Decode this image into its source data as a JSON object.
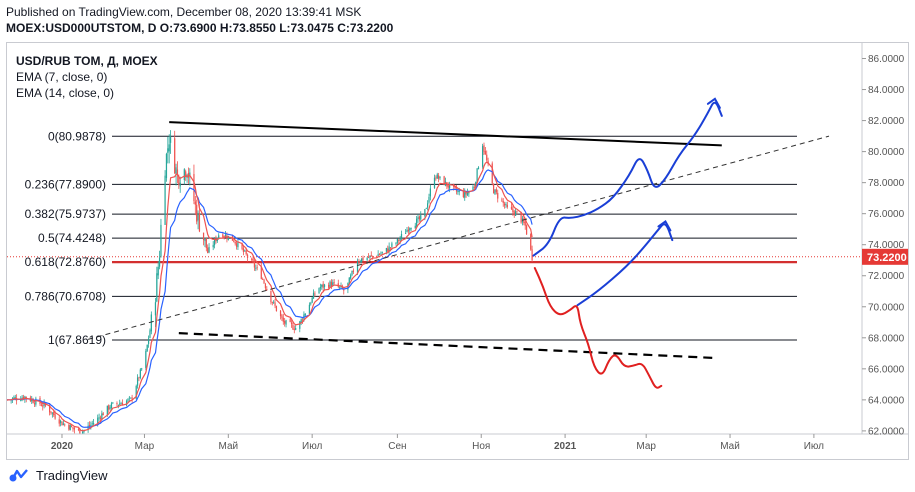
{
  "header": {
    "published": "Published on TradingView.com, December 08, 2020 13:39:41 MSK",
    "ohlc": "MOEX:USD000UTSTOM, D O:73.6900 H:73.8550 L:73.0475 C:73.2200"
  },
  "legend": {
    "symbol": "USD/RUB TOM, Д, MOEX",
    "ema7": "EMA (7, close, 0)",
    "ema14": "EMA (14, close, 0)"
  },
  "footer": {
    "brand": "TradingView",
    "logo_icon": "tradingview-logo-icon"
  },
  "colors": {
    "up": "#26a69a",
    "down": "#ef5350",
    "ema7": "#ef5350",
    "ema14": "#2962ff",
    "fib": "#131722",
    "fib_highlight": "#d32f2f",
    "price_label": "#e53935",
    "marker_blue": "#1a3fd6",
    "marker_red": "#e02020"
  },
  "chart_data": {
    "type": "candlestick",
    "title": "",
    "xlabel": "",
    "ylabel": "",
    "ylim": [
      61.8,
      87.0
    ],
    "x_range": [
      "2019-11-22",
      "2021-08-05"
    ],
    "x_ticks": [
      {
        "date": "2020-01-01",
        "label": "2020"
      },
      {
        "date": "2020-03-01",
        "label": "Мар"
      },
      {
        "date": "2020-05-01",
        "label": "Май"
      },
      {
        "date": "2020-07-01",
        "label": "Июл"
      },
      {
        "date": "2020-09-01",
        "label": "Сен"
      },
      {
        "date": "2020-11-01",
        "label": "Ноя"
      },
      {
        "date": "2021-01-01",
        "label": "2021"
      },
      {
        "date": "2021-03-01",
        "label": "Мар"
      },
      {
        "date": "2021-05-01",
        "label": "Май"
      },
      {
        "date": "2021-07-01",
        "label": "Июл"
      }
    ],
    "y_ticks": [
      "62.0000",
      "64.0000",
      "66.0000",
      "68.0000",
      "70.0000",
      "72.0000",
      "74.0000",
      "76.0000",
      "78.0000",
      "80.0000",
      "82.0000",
      "84.0000",
      "86.0000"
    ],
    "last_price": {
      "value": 73.22,
      "label": "73.2200"
    },
    "fib_levels": [
      {
        "level": "0",
        "value": 80.9878,
        "label": "0(80.9878)"
      },
      {
        "level": "0.236",
        "value": 77.89,
        "label": "0.236(77.8900)"
      },
      {
        "level": "0.382",
        "value": 75.9737,
        "label": "0.382(75.9737)"
      },
      {
        "level": "0.5",
        "value": 74.4248,
        "label": "0.5(74.4248)"
      },
      {
        "level": "0.618",
        "value": 72.876,
        "label": "0.618(72.8760)",
        "highlight": true
      },
      {
        "level": "0.786",
        "value": 70.6708,
        "label": "0.786(70.6708)"
      },
      {
        "level": "1",
        "value": 67.8619,
        "label": "1(67.8619)"
      }
    ],
    "price_path": [
      [
        "2019-11-22",
        64.0
      ],
      [
        "2019-12-05",
        64.2
      ],
      [
        "2019-12-20",
        63.6
      ],
      [
        "2020-01-01",
        62.5
      ],
      [
        "2020-01-15",
        61.9
      ],
      [
        "2020-01-25",
        62.6
      ],
      [
        "2020-02-05",
        63.6
      ],
      [
        "2020-02-20",
        64.0
      ],
      [
        "2020-03-01",
        66.5
      ],
      [
        "2020-03-08",
        70.0
      ],
      [
        "2020-03-12",
        73.5
      ],
      [
        "2020-03-15",
        78.5
      ],
      [
        "2020-03-19",
        80.9
      ],
      [
        "2020-03-25",
        78.4
      ],
      [
        "2020-04-01",
        79.0
      ],
      [
        "2020-04-08",
        76.0
      ],
      [
        "2020-04-16",
        73.5
      ],
      [
        "2020-04-25",
        74.8
      ],
      [
        "2020-05-05",
        74.3
      ],
      [
        "2020-05-15",
        73.2
      ],
      [
        "2020-05-25",
        72.0
      ],
      [
        "2020-06-01",
        70.5
      ],
      [
        "2020-06-10",
        69.0
      ],
      [
        "2020-06-20",
        68.6
      ],
      [
        "2020-06-28",
        70.0
      ],
      [
        "2020-07-05",
        71.2
      ],
      [
        "2020-07-15",
        71.5
      ],
      [
        "2020-07-25",
        71.0
      ],
      [
        "2020-08-03",
        73.0
      ],
      [
        "2020-08-12",
        73.2
      ],
      [
        "2020-08-22",
        73.5
      ],
      [
        "2020-09-01",
        74.2
      ],
      [
        "2020-09-10",
        75.2
      ],
      [
        "2020-09-20",
        75.8
      ],
      [
        "2020-09-28",
        78.5
      ],
      [
        "2020-10-05",
        78.0
      ],
      [
        "2020-10-12",
        77.5
      ],
      [
        "2020-10-20",
        77.2
      ],
      [
        "2020-10-27",
        77.8
      ],
      [
        "2020-11-02",
        80.5
      ],
      [
        "2020-11-10",
        77.5
      ],
      [
        "2020-11-20",
        76.3
      ],
      [
        "2020-11-27",
        76.0
      ],
      [
        "2020-12-03",
        75.2
      ],
      [
        "2020-12-08",
        73.2
      ]
    ],
    "drawings": [
      {
        "kind": "trendline",
        "style": "solid",
        "points": [
          [
            "2020-03-19",
            81.9
          ],
          [
            "2021-04-25",
            80.4
          ]
        ]
      },
      {
        "kind": "trendline",
        "style": "dashed",
        "points": [
          [
            "2020-01-20",
            67.9
          ],
          [
            "2021-07-12",
            81.0
          ]
        ]
      },
      {
        "kind": "trendline",
        "style": "dashed-bold",
        "points": [
          [
            "2020-03-26",
            68.3
          ],
          [
            "2021-04-20",
            66.7
          ]
        ]
      }
    ],
    "scenario_paths": [
      {
        "name": "bullish-1",
        "color": "blue",
        "points": [
          [
            "2020-12-09",
            73.3
          ],
          [
            "2020-12-20",
            74.0
          ],
          [
            "2020-12-28",
            75.8
          ],
          [
            "2021-01-05",
            75.7
          ],
          [
            "2021-01-15",
            75.9
          ],
          [
            "2021-01-25",
            76.3
          ],
          [
            "2021-02-05",
            77.0
          ],
          [
            "2021-02-17",
            78.5
          ],
          [
            "2021-02-24",
            79.8
          ],
          [
            "2021-03-02",
            78.8
          ],
          [
            "2021-03-07",
            77.5
          ],
          [
            "2021-03-15",
            78.2
          ],
          [
            "2021-03-25",
            79.8
          ],
          [
            "2021-04-05",
            81.0
          ],
          [
            "2021-04-15",
            82.5
          ],
          [
            "2021-04-20",
            83.4
          ],
          [
            "2021-04-25",
            82.3
          ]
        ]
      },
      {
        "name": "bullish-2",
        "color": "blue",
        "points": [
          [
            "2021-01-10",
            70.1
          ],
          [
            "2021-01-25",
            71.0
          ],
          [
            "2021-02-15",
            72.6
          ],
          [
            "2021-03-01",
            74.0
          ],
          [
            "2021-03-10",
            75.0
          ],
          [
            "2021-03-15",
            75.5
          ],
          [
            "2021-03-20",
            74.3
          ]
        ]
      },
      {
        "name": "bearish",
        "color": "red",
        "points": [
          [
            "2020-12-10",
            72.5
          ],
          [
            "2020-12-16",
            71.3
          ],
          [
            "2020-12-21",
            70.0
          ],
          [
            "2020-12-28",
            69.4
          ],
          [
            "2021-01-05",
            69.8
          ],
          [
            "2021-01-10",
            70.2
          ],
          [
            "2021-01-12",
            68.9
          ],
          [
            "2021-01-18",
            67.6
          ],
          [
            "2021-01-22",
            66.1
          ],
          [
            "2021-01-28",
            65.5
          ],
          [
            "2021-02-02",
            66.6
          ],
          [
            "2021-02-07",
            67.0
          ],
          [
            "2021-02-13",
            66.1
          ],
          [
            "2021-02-20",
            66.2
          ],
          [
            "2021-02-26",
            66.4
          ],
          [
            "2021-03-03",
            65.6
          ],
          [
            "2021-03-08",
            64.7
          ],
          [
            "2021-03-12",
            64.9
          ]
        ]
      }
    ]
  }
}
